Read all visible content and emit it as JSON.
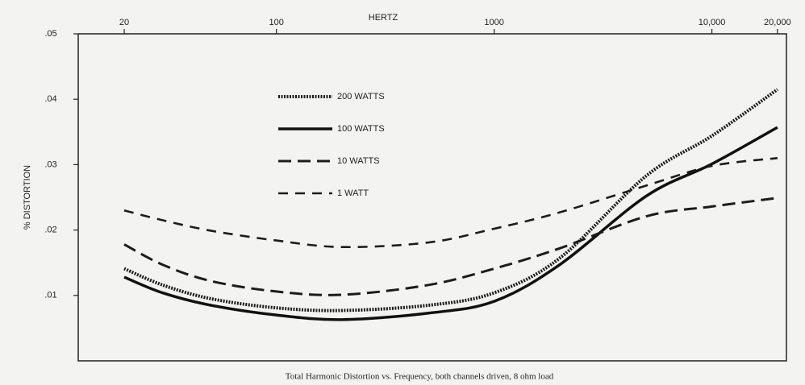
{
  "chart_data": {
    "type": "line",
    "caption": "Total Harmonic Distortion vs. Frequency, both channels driven, 8 ohm load",
    "xlabel": "HERTZ",
    "ylabel": "% DISTORTION",
    "x": [
      20,
      30,
      50,
      100,
      200,
      500,
      1000,
      2000,
      5000,
      10000,
      20000
    ],
    "xlim": [
      12.3,
      22000
    ],
    "xticks": [
      20,
      100,
      1000,
      {
        "value": 10000,
        "label": "10,000"
      },
      {
        "value": 20000,
        "label": "20,000"
      }
    ],
    "log_x": true,
    "ylim": [
      0,
      0.05
    ],
    "yticks": [
      {
        "value": 0.01,
        "label": ".01"
      },
      {
        "value": 0.02,
        "label": ".02"
      },
      {
        "value": 0.03,
        "label": ".03"
      },
      {
        "value": 0.04,
        "label": ".04"
      },
      {
        "value": 0.05,
        "label": ".05"
      }
    ],
    "series": [
      {
        "name": "200 WATTS",
        "color": "#1c1c1c",
        "style": "dotted",
        "values": [
          0.0141,
          0.0116,
          0.0095,
          0.0081,
          0.0077,
          0.0085,
          0.0104,
          0.0157,
          0.0283,
          0.0344,
          0.0415
        ]
      },
      {
        "name": "100 WATTS",
        "color": "#111111",
        "style": "solid",
        "values": [
          0.0128,
          0.0104,
          0.0085,
          0.007,
          0.0063,
          0.0073,
          0.0091,
          0.0147,
          0.0252,
          0.0301,
          0.0357
        ]
      },
      {
        "name": "10 WATTS",
        "color": "#1c1c1c",
        "style": "long-dashed",
        "values": [
          0.0178,
          0.0147,
          0.0122,
          0.0106,
          0.0101,
          0.0116,
          0.0141,
          0.0172,
          0.0221,
          0.0236,
          0.0249
        ]
      },
      {
        "name": "1 WATT",
        "color": "#1c1c1c",
        "style": "dashed",
        "values": [
          0.023,
          0.0215,
          0.0199,
          0.0184,
          0.0174,
          0.0181,
          0.0202,
          0.0227,
          0.0268,
          0.0298,
          0.031
        ]
      }
    ]
  }
}
